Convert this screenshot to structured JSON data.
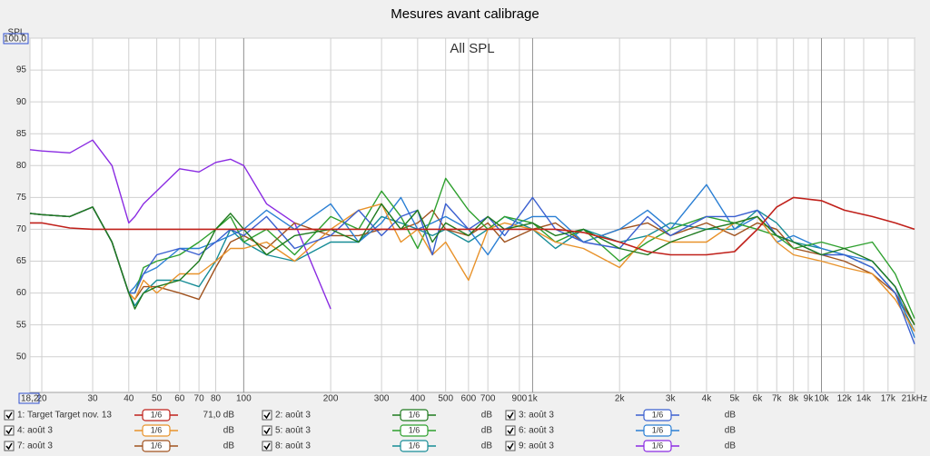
{
  "chart_data": {
    "type": "line",
    "title": "Mesures avant calibrage",
    "annotation": "All SPL",
    "y_axis_label": "SPL",
    "log_x": true,
    "grid": true,
    "xlim": [
      18.2,
      21000
    ],
    "ylim": [
      44.4,
      100
    ],
    "xticks": [
      {
        "value": 18.2,
        "label": "18,2"
      },
      20,
      30,
      40,
      50,
      60,
      70,
      80,
      100,
      200,
      300,
      400,
      500,
      600,
      700,
      900,
      {
        "value": 1000,
        "label": "1k"
      },
      {
        "value": 2000,
        "label": "2k"
      },
      {
        "value": 3000,
        "label": "3k"
      },
      {
        "value": 4000,
        "label": "4k"
      },
      {
        "value": 5000,
        "label": "5k"
      },
      {
        "value": 6000,
        "label": "6k"
      },
      {
        "value": 7000,
        "label": "7k"
      },
      {
        "value": 8000,
        "label": "8k"
      },
      {
        "value": 9000,
        "label": "9k"
      },
      {
        "value": 10000,
        "label": "10k"
      },
      {
        "value": 12000,
        "label": "12k"
      },
      {
        "value": 14000,
        "label": "14k"
      },
      {
        "value": 17000,
        "label": "17k"
      },
      {
        "value": 21000,
        "label": "21kHz"
      }
    ],
    "yticks": [
      {
        "value": 100,
        "label": "100,0"
      },
      95,
      90,
      85,
      80,
      75,
      70,
      65,
      60,
      55,
      50
    ],
    "x": [
      18.2,
      20,
      25,
      30,
      35,
      40,
      42,
      45,
      50,
      60,
      70,
      80,
      90,
      100,
      120,
      150,
      200,
      250,
      300,
      350,
      400,
      450,
      500,
      600,
      700,
      800,
      1000,
      1200,
      1500,
      2000,
      2500,
      3000,
      4000,
      5000,
      6000,
      7000,
      8000,
      10000,
      12000,
      15000,
      18000,
      21000
    ],
    "series": [
      {
        "name": "1: Target Target nov. 13",
        "smoothing": "1/6",
        "readout": "71,0 dB",
        "color": "#c0201a",
        "values": [
          71,
          71,
          70.2,
          70,
          70,
          70,
          70,
          70,
          70,
          70,
          70,
          70,
          70,
          70,
          70,
          70,
          70,
          70,
          70,
          70,
          70,
          70,
          70,
          70,
          70,
          70,
          70,
          70,
          69.5,
          68,
          66.5,
          66,
          66,
          66.5,
          70,
          73.5,
          75,
          74.5,
          73,
          72,
          71,
          70
        ]
      },
      {
        "name": "2: août 3",
        "smoothing": "1/6",
        "readout": "dB",
        "color": "#1e7a1e",
        "values": [
          72.5,
          72.3,
          72,
          73.5,
          68,
          60,
          57.5,
          60,
          61,
          62,
          65,
          70,
          72.5,
          70,
          66,
          69,
          70,
          68,
          74,
          70,
          73,
          68,
          71,
          69,
          72,
          70,
          71,
          69,
          70,
          67,
          66,
          68,
          70,
          71,
          72,
          69,
          68,
          66,
          67,
          65,
          61,
          55
        ]
      },
      {
        "name": "3: août 3",
        "smoothing": "1/6",
        "readout": "dB",
        "color": "#3a5fd0",
        "values": [
          72.5,
          72.3,
          72,
          73.5,
          68,
          60,
          60,
          63,
          66,
          67,
          66,
          68,
          70,
          69,
          72,
          67,
          69,
          73,
          69,
          72,
          73,
          66,
          74,
          70,
          72,
          69,
          75,
          70,
          68,
          67,
          72,
          69,
          72,
          72,
          73,
          69,
          68,
          66,
          66,
          64,
          60,
          52
        ]
      },
      {
        "name": "4: août 3",
        "smoothing": "1/6",
        "readout": "dB",
        "color": "#e8922a",
        "values": [
          72.5,
          72.3,
          72,
          73.5,
          68,
          60,
          59,
          62,
          60,
          63,
          63,
          65,
          67,
          67,
          68,
          65,
          70,
          73,
          74,
          68,
          70,
          66,
          68,
          62,
          70,
          71,
          70,
          68,
          67,
          64,
          69,
          68,
          68,
          71,
          72,
          68,
          66,
          65,
          64,
          63,
          59,
          54
        ]
      },
      {
        "name": "5: août 3",
        "smoothing": "1/6",
        "readout": "dB",
        "color": "#2ea02e",
        "values": [
          72.5,
          72.3,
          72,
          73.5,
          68,
          60,
          60,
          64,
          65,
          66,
          68,
          70,
          72,
          68,
          70,
          66,
          72,
          70,
          76,
          72,
          67,
          72,
          78,
          73,
          70,
          72,
          71,
          68,
          70,
          65,
          68,
          70,
          72,
          71,
          70,
          69,
          67,
          68,
          67,
          68,
          63,
          56
        ]
      },
      {
        "name": "6: août 3",
        "smoothing": "1/6",
        "readout": "dB",
        "color": "#2a7fd4",
        "values": [
          72.5,
          72.3,
          72,
          73.5,
          68,
          60,
          61,
          63,
          64,
          67,
          67,
          68,
          69,
          70,
          73,
          70,
          74,
          68,
          71,
          75,
          70,
          71,
          72,
          70,
          66,
          70,
          72,
          72,
          68,
          70,
          73,
          70,
          77,
          70,
          72,
          68,
          69,
          67,
          66,
          65,
          61,
          53
        ]
      },
      {
        "name": "7: août 3",
        "smoothing": "1/6",
        "readout": "dB",
        "color": "#a0521e",
        "values": [
          72.5,
          72.3,
          72,
          73.5,
          68,
          60,
          59,
          61,
          61,
          60,
          59,
          64,
          68,
          69,
          67,
          71,
          69,
          69,
          70,
          70,
          71,
          73,
          70,
          69,
          71,
          68,
          70,
          71,
          68,
          70,
          71,
          69,
          71,
          69,
          71,
          70,
          67,
          66,
          65,
          63,
          60,
          55
        ]
      },
      {
        "name": "8: août 3",
        "smoothing": "1/6",
        "readout": "dB",
        "color": "#168c96",
        "values": [
          72.5,
          72.3,
          72,
          73.5,
          68,
          60,
          58,
          60,
          62,
          62,
          61,
          65,
          70,
          68,
          66,
          65,
          68,
          68,
          72,
          71,
          70,
          69,
          70,
          68,
          70,
          72,
          70,
          67,
          70,
          68,
          69,
          71,
          70,
          70,
          73,
          71,
          68,
          67,
          66,
          64,
          60,
          54
        ]
      },
      {
        "name": "9: août 3",
        "smoothing": "1/6",
        "readout": "dB",
        "color": "#8a2be2",
        "values": [
          82.5,
          82.3,
          82,
          84,
          80,
          71,
          72,
          74,
          76,
          79.5,
          79,
          80.5,
          81,
          80,
          74,
          71,
          57.5,
          null,
          null,
          null,
          null,
          null,
          null,
          null,
          null,
          null,
          null,
          null,
          null,
          null,
          null,
          null,
          null,
          null,
          null,
          null,
          null,
          null,
          null,
          null,
          null,
          null
        ]
      }
    ]
  }
}
